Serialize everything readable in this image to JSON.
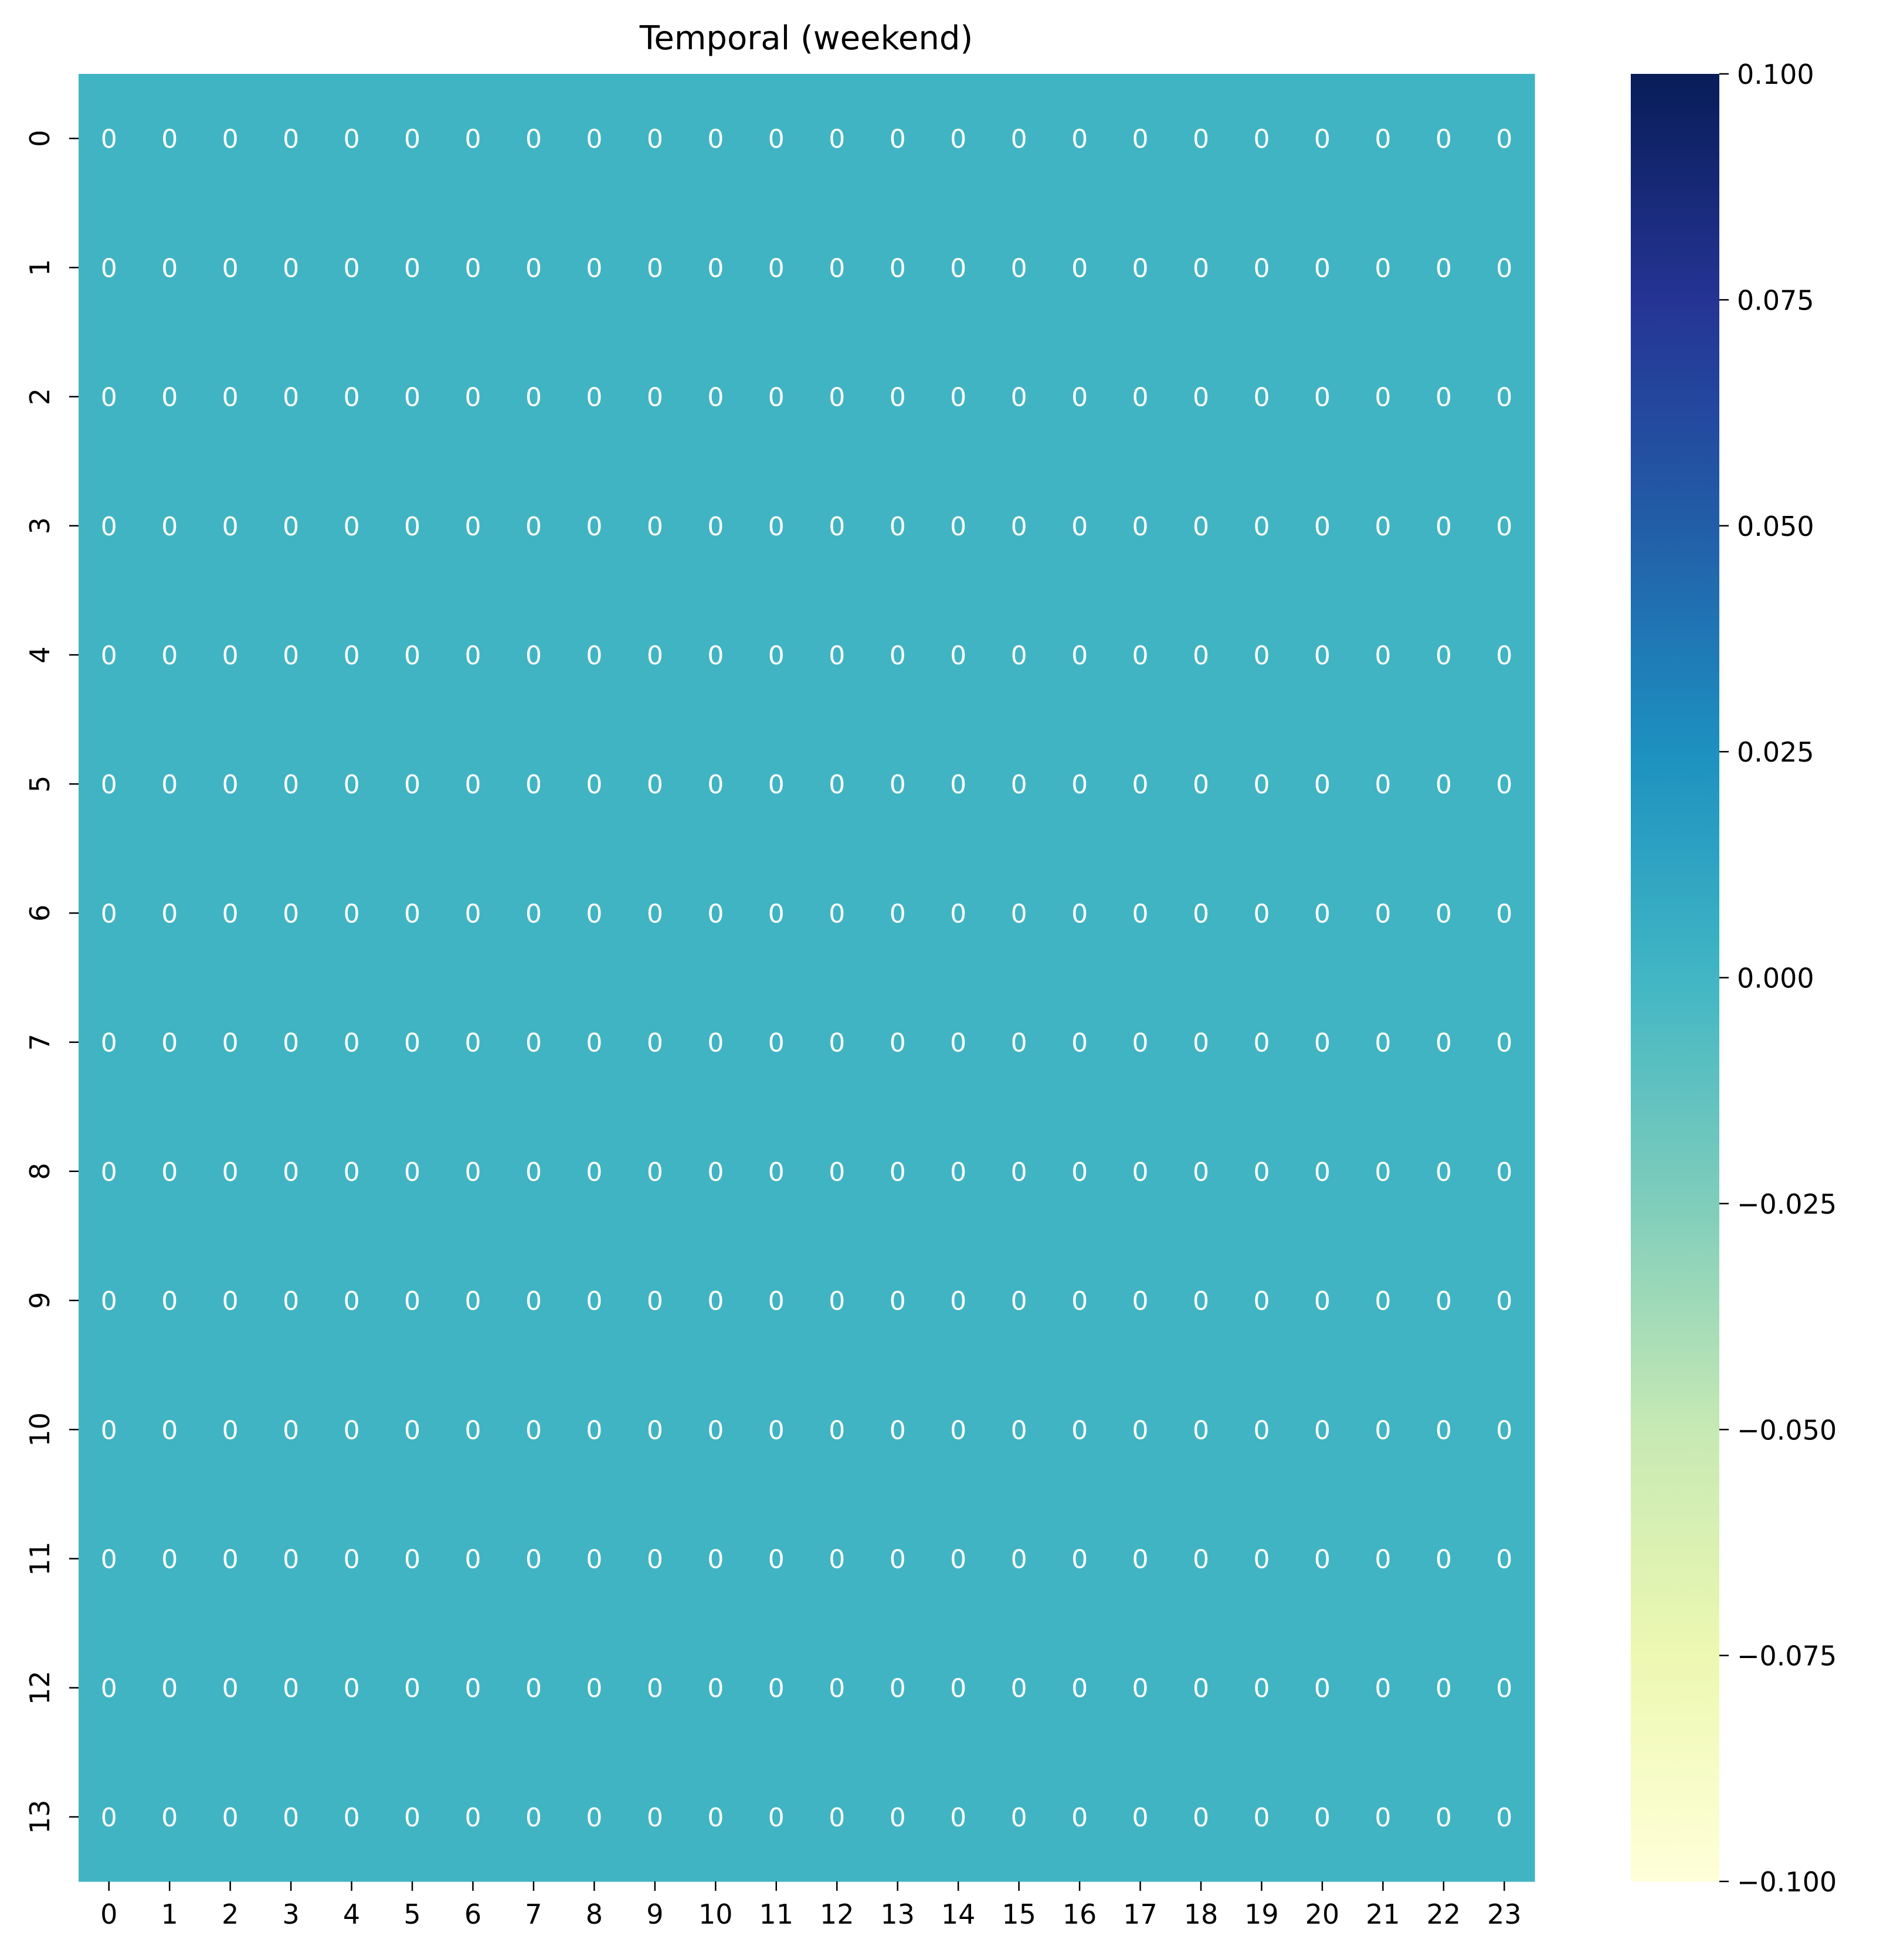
{
  "chart_data": {
    "type": "heatmap",
    "title": "Temporal (weekend)",
    "xlabel": "",
    "ylabel": "",
    "x_categories": [
      "0",
      "1",
      "2",
      "3",
      "4",
      "5",
      "6",
      "7",
      "8",
      "9",
      "10",
      "11",
      "12",
      "13",
      "14",
      "15",
      "16",
      "17",
      "18",
      "19",
      "20",
      "21",
      "22",
      "23"
    ],
    "y_categories": [
      "0",
      "1",
      "2",
      "3",
      "4",
      "5",
      "6",
      "7",
      "8",
      "9",
      "10",
      "11",
      "12",
      "13"
    ],
    "values": [
      [
        0,
        0,
        0,
        0,
        0,
        0,
        0,
        0,
        0,
        0,
        0,
        0,
        0,
        0,
        0,
        0,
        0,
        0,
        0,
        0,
        0,
        0,
        0,
        0
      ],
      [
        0,
        0,
        0,
        0,
        0,
        0,
        0,
        0,
        0,
        0,
        0,
        0,
        0,
        0,
        0,
        0,
        0,
        0,
        0,
        0,
        0,
        0,
        0,
        0
      ],
      [
        0,
        0,
        0,
        0,
        0,
        0,
        0,
        0,
        0,
        0,
        0,
        0,
        0,
        0,
        0,
        0,
        0,
        0,
        0,
        0,
        0,
        0,
        0,
        0
      ],
      [
        0,
        0,
        0,
        0,
        0,
        0,
        0,
        0,
        0,
        0,
        0,
        0,
        0,
        0,
        0,
        0,
        0,
        0,
        0,
        0,
        0,
        0,
        0,
        0
      ],
      [
        0,
        0,
        0,
        0,
        0,
        0,
        0,
        0,
        0,
        0,
        0,
        0,
        0,
        0,
        0,
        0,
        0,
        0,
        0,
        0,
        0,
        0,
        0,
        0
      ],
      [
        0,
        0,
        0,
        0,
        0,
        0,
        0,
        0,
        0,
        0,
        0,
        0,
        0,
        0,
        0,
        0,
        0,
        0,
        0,
        0,
        0,
        0,
        0,
        0
      ],
      [
        0,
        0,
        0,
        0,
        0,
        0,
        0,
        0,
        0,
        0,
        0,
        0,
        0,
        0,
        0,
        0,
        0,
        0,
        0,
        0,
        0,
        0,
        0,
        0
      ],
      [
        0,
        0,
        0,
        0,
        0,
        0,
        0,
        0,
        0,
        0,
        0,
        0,
        0,
        0,
        0,
        0,
        0,
        0,
        0,
        0,
        0,
        0,
        0,
        0
      ],
      [
        0,
        0,
        0,
        0,
        0,
        0,
        0,
        0,
        0,
        0,
        0,
        0,
        0,
        0,
        0,
        0,
        0,
        0,
        0,
        0,
        0,
        0,
        0,
        0
      ],
      [
        0,
        0,
        0,
        0,
        0,
        0,
        0,
        0,
        0,
        0,
        0,
        0,
        0,
        0,
        0,
        0,
        0,
        0,
        0,
        0,
        0,
        0,
        0,
        0
      ],
      [
        0,
        0,
        0,
        0,
        0,
        0,
        0,
        0,
        0,
        0,
        0,
        0,
        0,
        0,
        0,
        0,
        0,
        0,
        0,
        0,
        0,
        0,
        0,
        0
      ],
      [
        0,
        0,
        0,
        0,
        0,
        0,
        0,
        0,
        0,
        0,
        0,
        0,
        0,
        0,
        0,
        0,
        0,
        0,
        0,
        0,
        0,
        0,
        0,
        0
      ],
      [
        0,
        0,
        0,
        0,
        0,
        0,
        0,
        0,
        0,
        0,
        0,
        0,
        0,
        0,
        0,
        0,
        0,
        0,
        0,
        0,
        0,
        0,
        0,
        0
      ],
      [
        0,
        0,
        0,
        0,
        0,
        0,
        0,
        0,
        0,
        0,
        0,
        0,
        0,
        0,
        0,
        0,
        0,
        0,
        0,
        0,
        0,
        0,
        0,
        0
      ]
    ],
    "annotation_labels": "0",
    "annotation_color": "#ffffff",
    "colormap": "YlGnBu",
    "vmin": -0.1,
    "vmax": 0.1,
    "colorbar": {
      "ticks": [
        0.1,
        0.075,
        0.05,
        0.025,
        0.0,
        -0.025,
        -0.05,
        -0.075,
        -0.1
      ],
      "tick_labels": [
        "0.100",
        "0.075",
        "0.050",
        "0.025",
        "0.000",
        "−0.025",
        "−0.050",
        "−0.075",
        "−0.100"
      ],
      "stops": [
        {
          "v": 0.0,
          "c": "#ffffd9"
        },
        {
          "v": 0.125,
          "c": "#edf8b1"
        },
        {
          "v": 0.25,
          "c": "#c7e9b4"
        },
        {
          "v": 0.375,
          "c": "#7fcdbb"
        },
        {
          "v": 0.5,
          "c": "#41b6c4"
        },
        {
          "v": 0.625,
          "c": "#1d91c0"
        },
        {
          "v": 0.75,
          "c": "#225ea8"
        },
        {
          "v": 0.875,
          "c": "#253494"
        },
        {
          "v": 1.0,
          "c": "#081d58"
        }
      ]
    },
    "cell_color": "#41b4c3",
    "legend": "colorbar-right",
    "grid": false
  }
}
